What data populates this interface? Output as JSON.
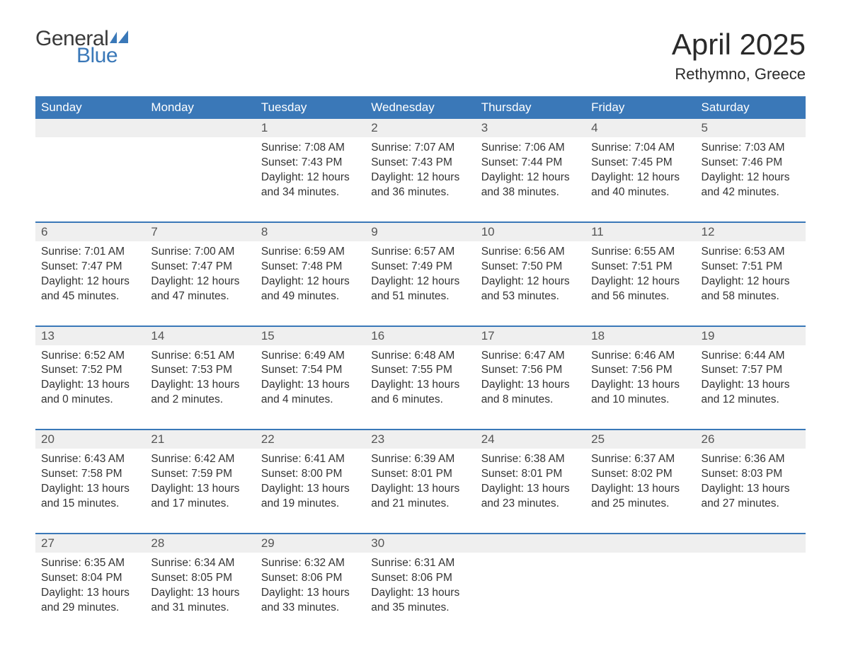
{
  "logo": {
    "text1": "General",
    "text2": "Blue",
    "flag_color": "#3a78b8",
    "text1_color": "#3a3a3a"
  },
  "title": "April 2025",
  "location": "Rethymno, Greece",
  "colors": {
    "header_bg": "#3a78b8",
    "header_text": "#ffffff",
    "daynum_bg": "#efefef",
    "text": "#333333",
    "rule": "#3a78b8",
    "page_bg": "#ffffff"
  },
  "fonts": {
    "title_size": 42,
    "location_size": 22,
    "dow_size": 17,
    "daynum_size": 17,
    "detail_size": 15.5
  },
  "days_of_week": [
    "Sunday",
    "Monday",
    "Tuesday",
    "Wednesday",
    "Thursday",
    "Friday",
    "Saturday"
  ],
  "weeks": [
    [
      null,
      null,
      {
        "n": "1",
        "sr": "7:08 AM",
        "ss": "7:43 PM",
        "dl": "12 hours and 34 minutes."
      },
      {
        "n": "2",
        "sr": "7:07 AM",
        "ss": "7:43 PM",
        "dl": "12 hours and 36 minutes."
      },
      {
        "n": "3",
        "sr": "7:06 AM",
        "ss": "7:44 PM",
        "dl": "12 hours and 38 minutes."
      },
      {
        "n": "4",
        "sr": "7:04 AM",
        "ss": "7:45 PM",
        "dl": "12 hours and 40 minutes."
      },
      {
        "n": "5",
        "sr": "7:03 AM",
        "ss": "7:46 PM",
        "dl": "12 hours and 42 minutes."
      }
    ],
    [
      {
        "n": "6",
        "sr": "7:01 AM",
        "ss": "7:47 PM",
        "dl": "12 hours and 45 minutes."
      },
      {
        "n": "7",
        "sr": "7:00 AM",
        "ss": "7:47 PM",
        "dl": "12 hours and 47 minutes."
      },
      {
        "n": "8",
        "sr": "6:59 AM",
        "ss": "7:48 PM",
        "dl": "12 hours and 49 minutes."
      },
      {
        "n": "9",
        "sr": "6:57 AM",
        "ss": "7:49 PM",
        "dl": "12 hours and 51 minutes."
      },
      {
        "n": "10",
        "sr": "6:56 AM",
        "ss": "7:50 PM",
        "dl": "12 hours and 53 minutes."
      },
      {
        "n": "11",
        "sr": "6:55 AM",
        "ss": "7:51 PM",
        "dl": "12 hours and 56 minutes."
      },
      {
        "n": "12",
        "sr": "6:53 AM",
        "ss": "7:51 PM",
        "dl": "12 hours and 58 minutes."
      }
    ],
    [
      {
        "n": "13",
        "sr": "6:52 AM",
        "ss": "7:52 PM",
        "dl": "13 hours and 0 minutes."
      },
      {
        "n": "14",
        "sr": "6:51 AM",
        "ss": "7:53 PM",
        "dl": "13 hours and 2 minutes."
      },
      {
        "n": "15",
        "sr": "6:49 AM",
        "ss": "7:54 PM",
        "dl": "13 hours and 4 minutes."
      },
      {
        "n": "16",
        "sr": "6:48 AM",
        "ss": "7:55 PM",
        "dl": "13 hours and 6 minutes."
      },
      {
        "n": "17",
        "sr": "6:47 AM",
        "ss": "7:56 PM",
        "dl": "13 hours and 8 minutes."
      },
      {
        "n": "18",
        "sr": "6:46 AM",
        "ss": "7:56 PM",
        "dl": "13 hours and 10 minutes."
      },
      {
        "n": "19",
        "sr": "6:44 AM",
        "ss": "7:57 PM",
        "dl": "13 hours and 12 minutes."
      }
    ],
    [
      {
        "n": "20",
        "sr": "6:43 AM",
        "ss": "7:58 PM",
        "dl": "13 hours and 15 minutes."
      },
      {
        "n": "21",
        "sr": "6:42 AM",
        "ss": "7:59 PM",
        "dl": "13 hours and 17 minutes."
      },
      {
        "n": "22",
        "sr": "6:41 AM",
        "ss": "8:00 PM",
        "dl": "13 hours and 19 minutes."
      },
      {
        "n": "23",
        "sr": "6:39 AM",
        "ss": "8:01 PM",
        "dl": "13 hours and 21 minutes."
      },
      {
        "n": "24",
        "sr": "6:38 AM",
        "ss": "8:01 PM",
        "dl": "13 hours and 23 minutes."
      },
      {
        "n": "25",
        "sr": "6:37 AM",
        "ss": "8:02 PM",
        "dl": "13 hours and 25 minutes."
      },
      {
        "n": "26",
        "sr": "6:36 AM",
        "ss": "8:03 PM",
        "dl": "13 hours and 27 minutes."
      }
    ],
    [
      {
        "n": "27",
        "sr": "6:35 AM",
        "ss": "8:04 PM",
        "dl": "13 hours and 29 minutes."
      },
      {
        "n": "28",
        "sr": "6:34 AM",
        "ss": "8:05 PM",
        "dl": "13 hours and 31 minutes."
      },
      {
        "n": "29",
        "sr": "6:32 AM",
        "ss": "8:06 PM",
        "dl": "13 hours and 33 minutes."
      },
      {
        "n": "30",
        "sr": "6:31 AM",
        "ss": "8:06 PM",
        "dl": "13 hours and 35 minutes."
      },
      null,
      null,
      null
    ]
  ],
  "labels": {
    "sunrise": "Sunrise: ",
    "sunset": "Sunset: ",
    "daylight": "Daylight: "
  }
}
